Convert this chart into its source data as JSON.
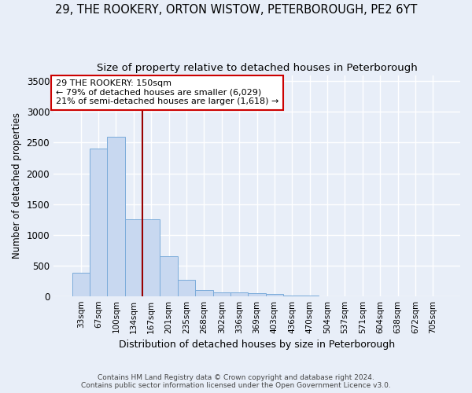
{
  "title1": "29, THE ROOKERY, ORTON WISTOW, PETERBOROUGH, PE2 6YT",
  "title2": "Size of property relative to detached houses in Peterborough",
  "xlabel": "Distribution of detached houses by size in Peterborough",
  "ylabel": "Number of detached properties",
  "categories": [
    "33sqm",
    "67sqm",
    "100sqm",
    "134sqm",
    "167sqm",
    "201sqm",
    "235sqm",
    "268sqm",
    "302sqm",
    "336sqm",
    "369sqm",
    "403sqm",
    "436sqm",
    "470sqm",
    "504sqm",
    "537sqm",
    "571sqm",
    "604sqm",
    "638sqm",
    "672sqm",
    "705sqm"
  ],
  "values": [
    380,
    2400,
    2600,
    1250,
    1250,
    650,
    260,
    100,
    60,
    60,
    45,
    35,
    8,
    4,
    2,
    1,
    1,
    0,
    0,
    0,
    0
  ],
  "bar_color": "#c8d8f0",
  "bar_edge_color": "#7aabda",
  "vline_color": "#990000",
  "annotation_text": "29 THE ROOKERY: 150sqm\n← 79% of detached houses are smaller (6,029)\n21% of semi-detached houses are larger (1,618) →",
  "annotation_box_color": "#ffffff",
  "annotation_box_edge": "#cc0000",
  "ylim": [
    0,
    3600
  ],
  "yticks": [
    0,
    500,
    1000,
    1500,
    2000,
    2500,
    3000,
    3500
  ],
  "footer1": "Contains HM Land Registry data © Crown copyright and database right 2024.",
  "footer2": "Contains public sector information licensed under the Open Government Licence v3.0.",
  "bg_color": "#e8eef8",
  "plot_bg_color": "#e8eef8",
  "grid_color": "#ffffff",
  "title1_fontsize": 10.5,
  "title2_fontsize": 9.5,
  "vline_pos": 3.5
}
